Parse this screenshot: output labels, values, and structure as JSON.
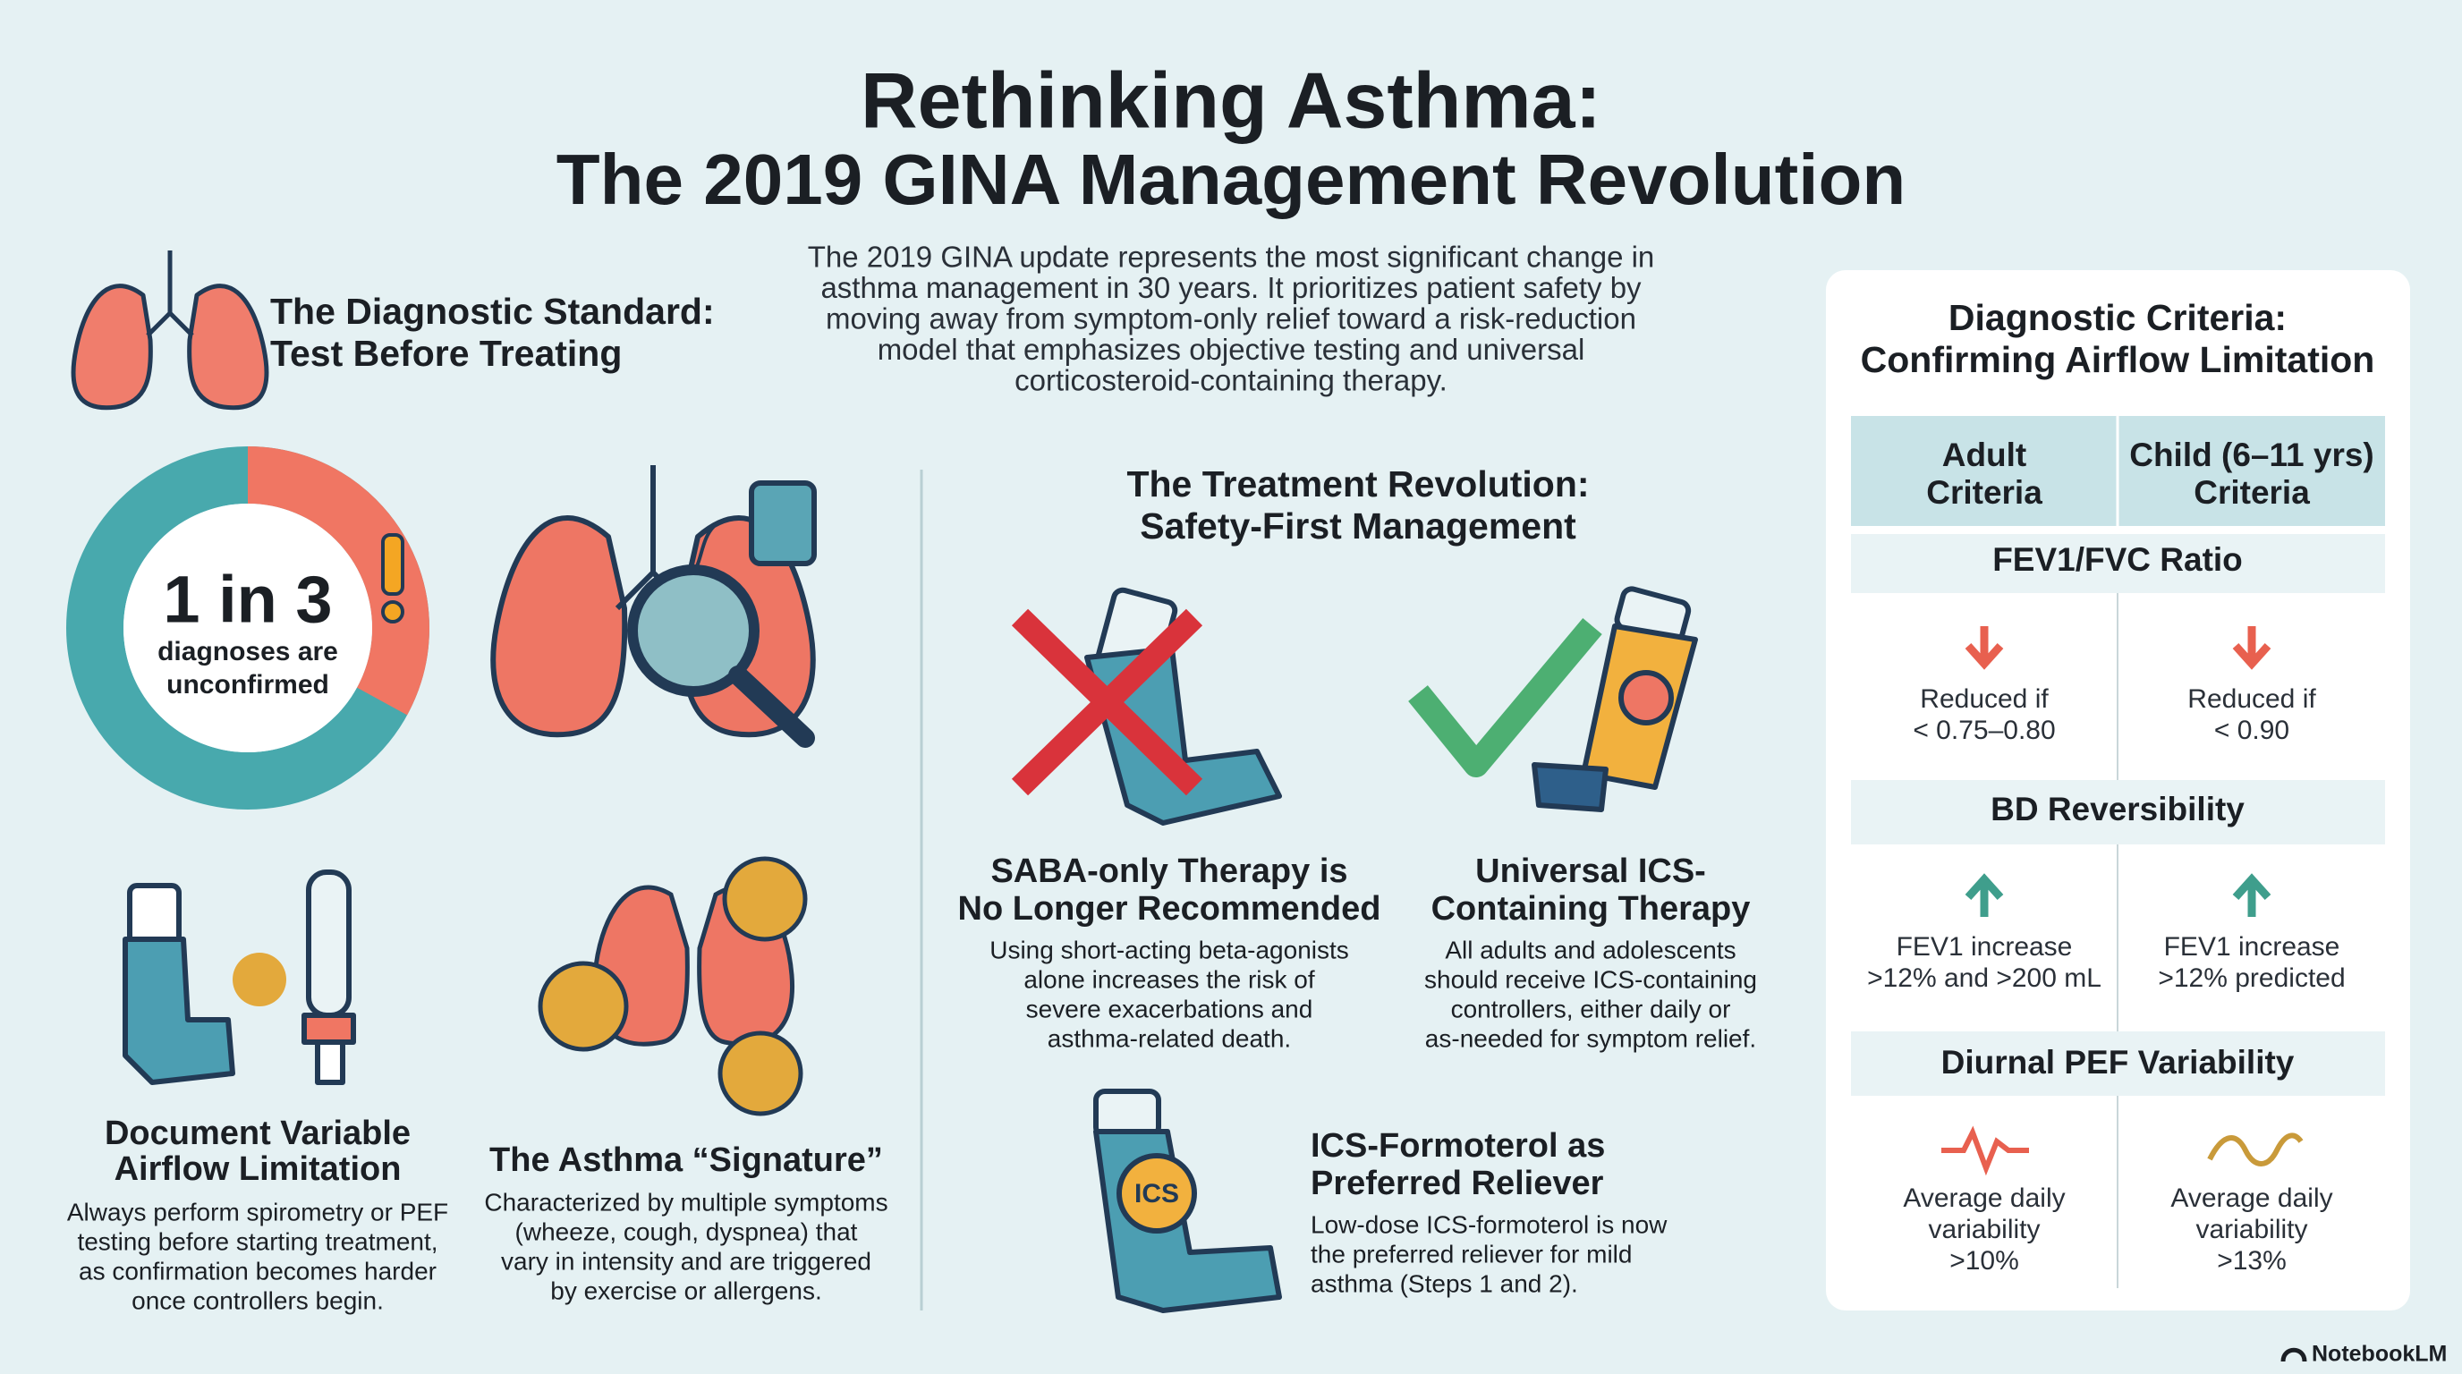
{
  "header": {
    "title_lines": [
      "Rethinking Asthma:",
      "The 2019 GINA Management Revolution"
    ],
    "intro_lines": [
      "The 2019 GINA update represents the most significant change in",
      "asthma management in 30 years. It prioritizes patient safety by",
      "moving away from symptom-only relief toward a risk-reduction",
      "model that emphasizes objective testing and universal",
      "corticosteroid-containing therapy."
    ]
  },
  "diagnostic": {
    "heading_lines": [
      "The Diagnostic Standard:",
      "Test Before Treating"
    ],
    "stat": "1 in 3",
    "stat_caption_lines": [
      "diagnoses are",
      "unconfirmed"
    ],
    "cards": [
      {
        "title_lines": [
          "Document Variable",
          "Airflow Limitation"
        ],
        "text_lines": [
          "Always perform spirometry or PEF",
          "testing before starting treatment,",
          "as confirmation becomes harder",
          "once controllers begin."
        ]
      },
      {
        "title_lines": [
          "The Asthma “Signature”"
        ],
        "text_lines": [
          "Characterized by multiple symptoms",
          "(wheeze, cough, dyspnea) that",
          "vary in intensity and are triggered",
          "by exercise or allergens."
        ]
      }
    ]
  },
  "treatment": {
    "heading_lines": [
      "The Treatment Revolution:",
      "Safety-First Management"
    ],
    "items": [
      {
        "title_lines": [
          "SABA-only Therapy is",
          "No Longer Recommended"
        ],
        "text_lines": [
          "Using short-acting beta-agonists",
          "alone increases the risk of",
          "severe exacerbations and",
          "asthma-related death."
        ]
      },
      {
        "title_lines": [
          "Universal ICS-",
          "Containing Therapy"
        ],
        "text_lines": [
          "All adults and adolescents",
          "should receive ICS-containing",
          "controllers, either daily or",
          "as-needed for symptom relief."
        ]
      },
      {
        "title_lines": [
          "ICS-Formoterol as",
          "Preferred Reliever"
        ],
        "text_lines": [
          "Low-dose ICS-formoterol is now",
          "the preferred reliever for mild",
          "asthma (Steps 1 and 2)."
        ],
        "icon_label": "ICS"
      }
    ]
  },
  "criteria": {
    "title_lines": [
      "Diagnostic Criteria:",
      "Confirming Airflow Limitation"
    ],
    "columns": [
      [
        "Adult",
        "Criteria"
      ],
      [
        "Child (6–11 yrs)",
        "Criteria"
      ]
    ],
    "sections": [
      {
        "name": "FEV1/FVC Ratio",
        "cells": [
          [
            "Reduced if",
            "< 0.75–0.80"
          ],
          [
            "Reduced if",
            "< 0.90"
          ]
        ]
      },
      {
        "name": "BD Reversibility",
        "cells": [
          [
            "FEV1 increase",
            ">12% and >200 mL"
          ],
          [
            "FEV1 increase",
            ">12% predicted"
          ]
        ]
      },
      {
        "name": "Diurnal PEF Variability",
        "cells": [
          [
            "Average daily",
            "variability",
            ">10%"
          ],
          [
            "Average daily",
            "variability",
            ">13%"
          ]
        ]
      }
    ]
  },
  "footer": {
    "brand": "NotebookLM"
  }
}
